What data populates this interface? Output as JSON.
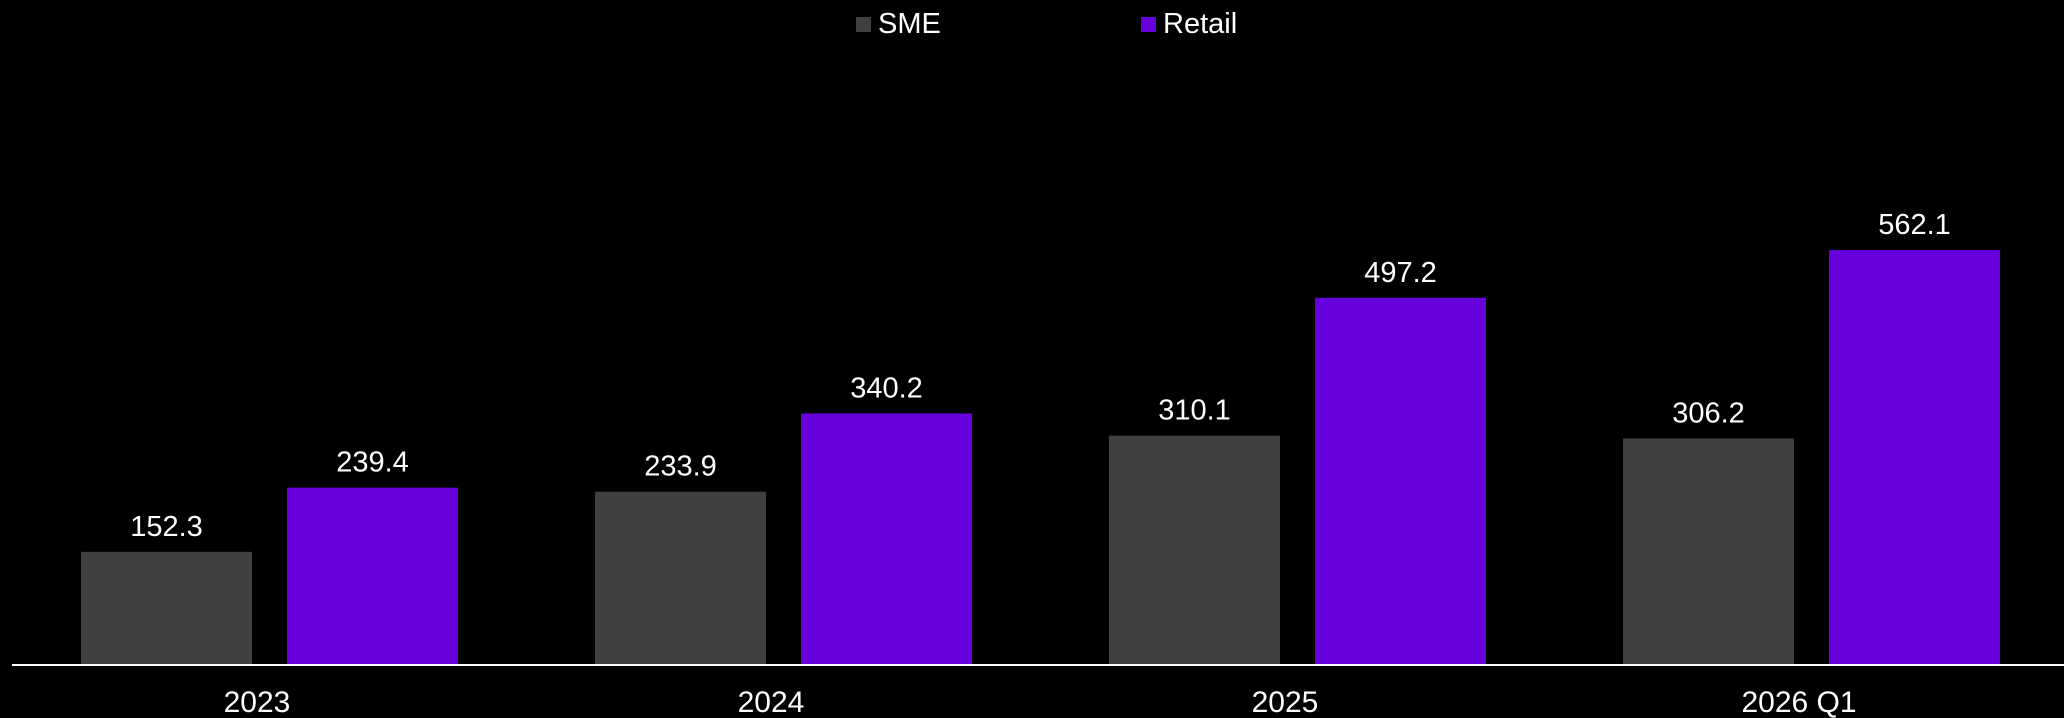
{
  "chart_data": {
    "type": "bar",
    "categories": [
      "2023",
      "2024",
      "2025",
      "2026 Q1"
    ],
    "series": [
      {
        "name": "SME",
        "values": [
          152.3,
          233.9,
          310.1,
          306.2
        ],
        "labels": [
          "152.3",
          "233.9",
          "310.1",
          "306.2"
        ],
        "color": "#404040"
      },
      {
        "name": "Retail",
        "values": [
          239.4,
          340.2,
          497.2,
          562.1
        ],
        "labels": [
          "239.4",
          "340.2",
          "497.2",
          "562.1"
        ],
        "color": "#6600DD"
      }
    ],
    "title": "",
    "xlabel": "",
    "ylabel": "",
    "ylim": [
      0,
      600
    ],
    "grid": false,
    "legend_position": "top-center",
    "axis_color": "#FFFFFF",
    "text_color": "#FFFFFF",
    "background": "#000000"
  }
}
